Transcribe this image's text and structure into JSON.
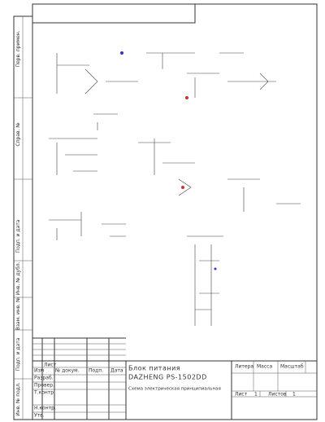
{
  "side_stamps": [
    "Перв. примен.",
    "Справ. №",
    "Подп. и дата",
    "Инв. № дубл.",
    "Взам. инв. №",
    "Подп. и дата",
    "Инв. № подл."
  ],
  "title_block": {
    "title": "Блок питания",
    "model": "DAZHENG PS-1502DD",
    "doc_type": "Схема электрическая принципиальная",
    "headers": [
      "Изм",
      "Лист",
      "№ докум.",
      "Подп.",
      "Дата"
    ],
    "roles": [
      "Разраб.",
      "Провер.",
      "Т.контр.",
      "Н.контр.",
      "Утв."
    ],
    "right_headers": [
      "Литера",
      "Масса",
      "Масштаб"
    ],
    "sheet_label": "Лист",
    "sheet": "1",
    "sheets_label": "Листов",
    "sheets": "1"
  }
}
